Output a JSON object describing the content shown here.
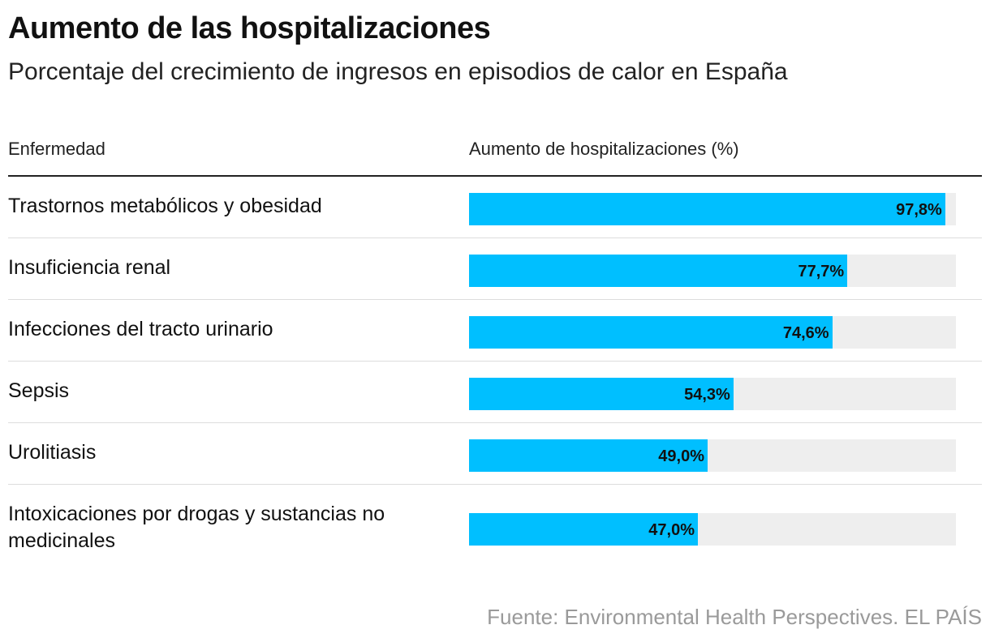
{
  "title": "Aumento de las hospitalizaciones",
  "subtitle": "Porcentaje del crecimiento de ingresos en episodios de calor en España",
  "columns": {
    "left": "Enfermedad",
    "right": "Aumento de hospitalizaciones (%)"
  },
  "source": "Fuente: Environmental Health Perspectives. EL PAÍS",
  "colors": {
    "bar": "#00bfff",
    "track": "#eeeeee"
  },
  "chart_data": {
    "type": "bar",
    "orientation": "horizontal",
    "categories": [
      "Trastornos metabólicos y obesidad",
      "Insuficiencia renal",
      "Infecciones del tracto urinario",
      "Sepsis",
      "Urolitiasis",
      "Intoxicaciones por drogas y sustancias no medicinales"
    ],
    "values": [
      97.8,
      77.7,
      74.6,
      54.3,
      49.0,
      47.0
    ],
    "value_labels": [
      "97,8%",
      "77,7%",
      "74,6%",
      "54,3%",
      "49,0%",
      "47,0%"
    ],
    "xlim": [
      0,
      100
    ],
    "title": "Aumento de las hospitalizaciones",
    "xlabel": "Aumento de hospitalizaciones (%)",
    "ylabel": "Enfermedad",
    "grid": false
  }
}
